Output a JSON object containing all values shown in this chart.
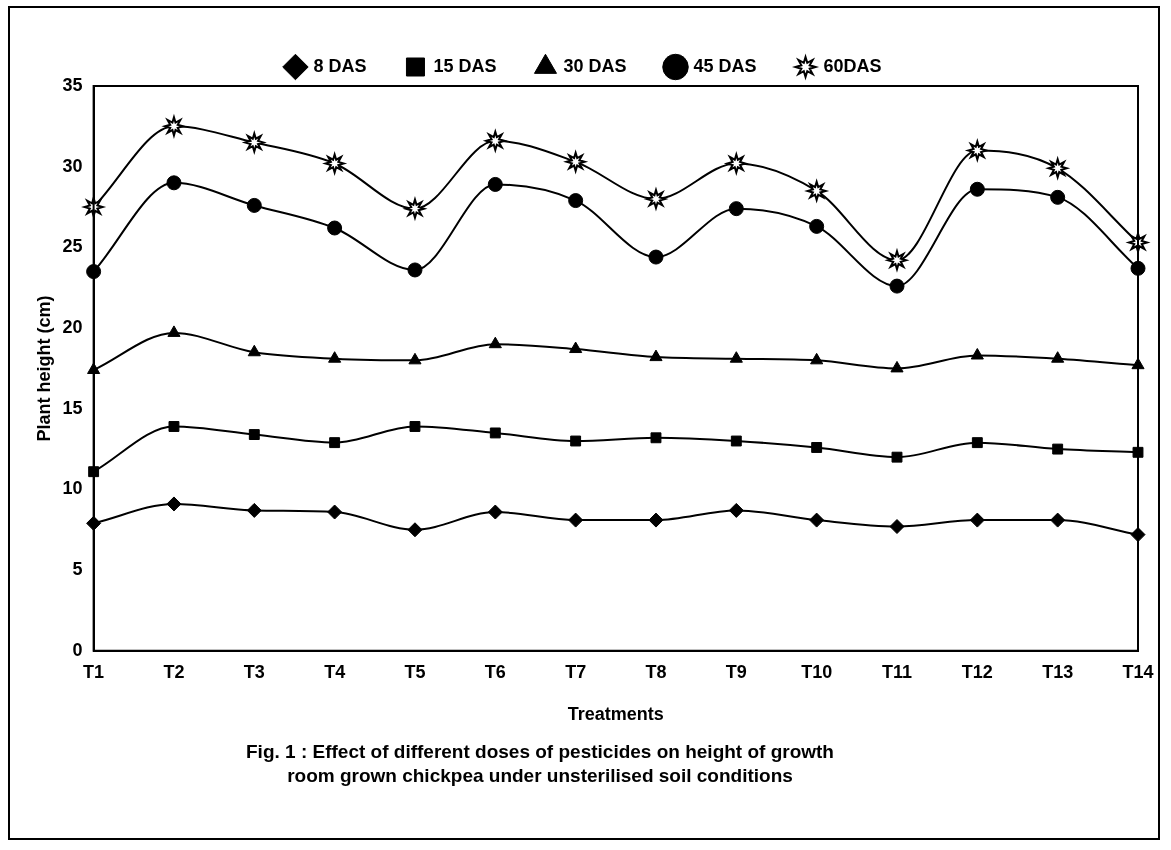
{
  "chart_data": {
    "type": "line",
    "title": "Fig. 1 : Effect of different doses of pesticides on height of growth room grown chickpea under unsterilised soil conditions",
    "xlabel": "Treatments",
    "ylabel": "Plant height (cm)",
    "categories": [
      "T1",
      "T2",
      "T3",
      "T4",
      "T5",
      "T6",
      "T7",
      "T8",
      "T9",
      "T10",
      "T11",
      "T12",
      "T13",
      "T14"
    ],
    "series": [
      {
        "name": "8 DAS",
        "color": "#000000",
        "marker": "diamond",
        "values": [
          7.9,
          9.1,
          8.7,
          8.6,
          7.5,
          8.6,
          8.1,
          8.1,
          8.7,
          8.1,
          7.7,
          8.1,
          8.1,
          7.2
        ]
      },
      {
        "name": "15 DAS",
        "color": "#000000",
        "marker": "square",
        "values": [
          11.1,
          13.9,
          13.4,
          12.9,
          13.9,
          13.5,
          13.0,
          13.2,
          13.0,
          12.6,
          12.0,
          12.9,
          12.5,
          12.3
        ]
      },
      {
        "name": "30 DAS",
        "color": "#000000",
        "marker": "triangle",
        "values": [
          17.4,
          19.7,
          18.5,
          18.1,
          18.0,
          19.0,
          18.7,
          18.2,
          18.1,
          18.0,
          17.5,
          18.3,
          18.1,
          17.7
        ]
      },
      {
        "name": "45 DAS",
        "color": "#000000",
        "marker": "circle",
        "values": [
          23.5,
          29.0,
          27.6,
          26.2,
          23.6,
          28.9,
          27.9,
          24.4,
          27.4,
          26.3,
          22.6,
          28.6,
          28.1,
          23.7
        ]
      },
      {
        "name": "60DAS",
        "color": "#000000",
        "marker": "star",
        "values": [
          27.5,
          32.5,
          31.5,
          30.2,
          27.4,
          31.6,
          30.3,
          28.0,
          30.2,
          28.5,
          24.2,
          31.0,
          29.9,
          25.3
        ]
      }
    ],
    "ylim": [
      0,
      35
    ],
    "yticks": [
      0,
      5,
      10,
      15,
      20,
      25,
      30,
      35
    ],
    "grid": false,
    "legend": "top",
    "line_style": "solid"
  }
}
